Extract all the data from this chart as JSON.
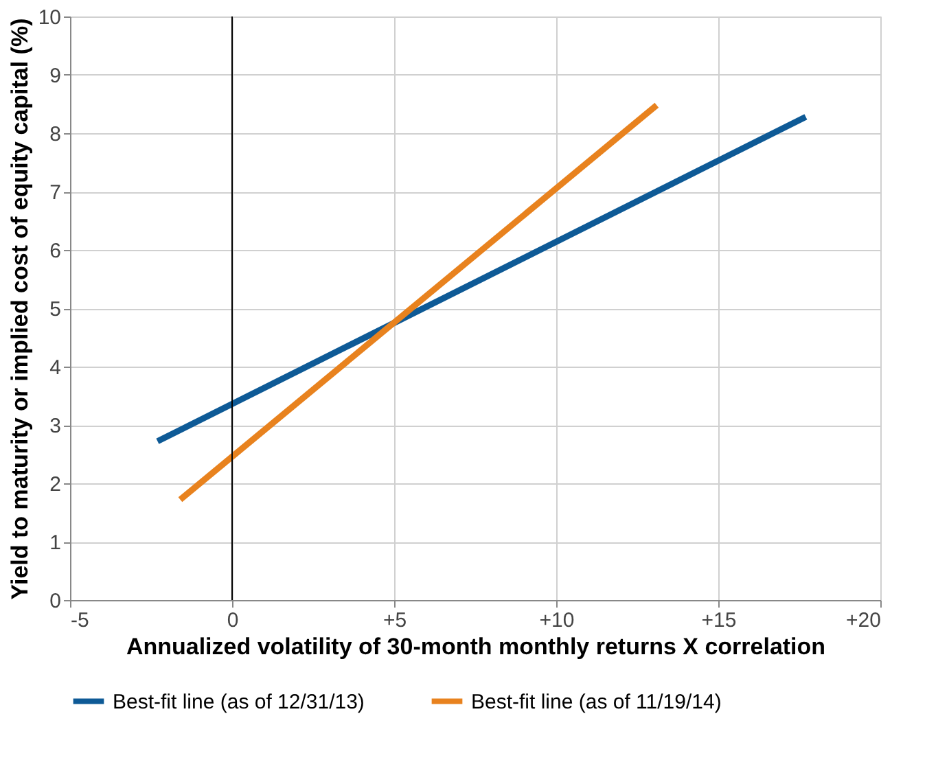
{
  "chart_data": {
    "type": "line",
    "xlabel": "Annualized volatility of 30-month monthly returns X correlation",
    "ylabel": "Yield to maturity or implied cost of equity capital (%)",
    "series": [
      {
        "name": "Best-fit line (as of 12/31/13)",
        "color": "#0e5a96",
        "x": [
          -2.3,
          17.7
        ],
        "values": [
          2.72,
          8.28
        ]
      },
      {
        "name": "Best-fit line (as of 11/19/14)",
        "color": "#e8821e",
        "x": [
          -1.6,
          13.1
        ],
        "values": [
          1.72,
          8.48
        ]
      }
    ],
    "xlim": [
      -5,
      20
    ],
    "xticks": [
      -5,
      0,
      {
        "value": 5,
        "label": "+5"
      },
      {
        "value": 10,
        "label": "+10"
      },
      {
        "value": 15,
        "label": "+15"
      },
      {
        "value": 20,
        "label": "+20"
      }
    ],
    "ylim": [
      0,
      10
    ],
    "yticks": [
      0,
      1,
      2,
      3,
      4,
      5,
      6,
      7,
      8,
      9,
      10
    ],
    "ref_lines": [
      {
        "axis": "x",
        "value": 0,
        "color": "#000000"
      }
    ],
    "grid": true,
    "legend": "bottom",
    "line_style": "solid",
    "marker": "none"
  }
}
